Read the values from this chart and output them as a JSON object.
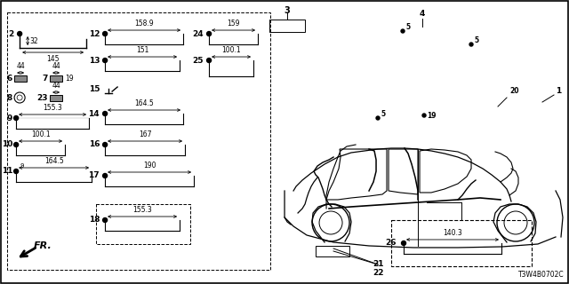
{
  "bg_color": "#ffffff",
  "part_code": "T3W4B0702C",
  "components": [
    {
      "id": "2",
      "col": 0,
      "row": 0
    },
    {
      "id": "6",
      "col": 0,
      "row": 2
    },
    {
      "id": "7",
      "col": 0,
      "row": 2,
      "sub": true
    },
    {
      "id": "8",
      "col": 0,
      "row": 3
    },
    {
      "id": "23",
      "col": 0,
      "row": 3,
      "sub": true
    },
    {
      "id": "9",
      "col": 0,
      "row": 4
    },
    {
      "id": "10",
      "col": 0,
      "row": 5
    },
    {
      "id": "11",
      "col": 0,
      "row": 6
    },
    {
      "id": "12",
      "col": 1,
      "row": 0
    },
    {
      "id": "13",
      "col": 1,
      "row": 1
    },
    {
      "id": "15",
      "col": 1,
      "row": 2
    },
    {
      "id": "14",
      "col": 1,
      "row": 3
    },
    {
      "id": "16",
      "col": 1,
      "row": 4
    },
    {
      "id": "17",
      "col": 1,
      "row": 5
    },
    {
      "id": "18",
      "col": 1,
      "row": 6
    },
    {
      "id": "24",
      "col": 2,
      "row": 0
    },
    {
      "id": "25",
      "col": 2,
      "row": 1
    },
    {
      "id": "26",
      "col": 3,
      "row": 5
    }
  ],
  "dims": {
    "2": {
      "h": "32",
      "w": "145"
    },
    "9": {
      "w": "155.3"
    },
    "10": {
      "w": "100.1"
    },
    "11": {
      "s": "9",
      "w": "164.5"
    },
    "12": {
      "w": "158.9"
    },
    "13": {
      "w": "151"
    },
    "14": {
      "w": "164.5"
    },
    "16": {
      "w": "167"
    },
    "17": {
      "w": "190"
    },
    "18": {
      "w": "155.3"
    },
    "24": {
      "w": "159"
    },
    "25": {
      "w": "100.1"
    },
    "26": {
      "w": "140.3"
    },
    "6": {
      "w": "44"
    },
    "7": {
      "w": "44",
      "s": "19"
    },
    "23": {
      "w": "44"
    }
  }
}
